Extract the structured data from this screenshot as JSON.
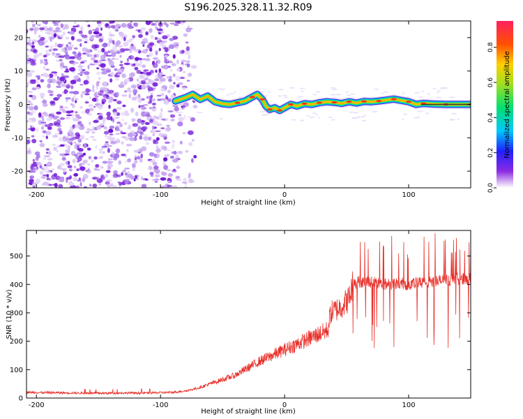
{
  "title": "S196.2025.328.11.32.R09",
  "colors": {
    "snr_line": "#e8302a",
    "axis": "#000000",
    "ridge_outer": "#3a1fd6"
  },
  "chart_data": [
    {
      "type": "heatmap",
      "name": "spectrogram",
      "xlabel": "Height of straight line (km)",
      "ylabel": "Frequency (Hz)",
      "xlim": [
        -208,
        150
      ],
      "ylim": [
        -25,
        25
      ],
      "xticks": [
        -200,
        -100,
        0,
        100
      ],
      "yticks": [
        -20,
        -10,
        0,
        10,
        20
      ],
      "noise_region_x": [
        -208,
        -70
      ],
      "ridge_x_start": -88,
      "ridge": [
        {
          "x": -88,
          "y": 1.0
        },
        {
          "x": -80,
          "y": 2.0
        },
        {
          "x": -74,
          "y": 3.0
        },
        {
          "x": -68,
          "y": 1.5
        },
        {
          "x": -62,
          "y": 2.5
        },
        {
          "x": -56,
          "y": 0.8
        },
        {
          "x": -50,
          "y": 0.2
        },
        {
          "x": -44,
          "y": 0.0
        },
        {
          "x": -38,
          "y": 0.5
        },
        {
          "x": -32,
          "y": 1.0
        },
        {
          "x": -26,
          "y": 2.2
        },
        {
          "x": -22,
          "y": 3.0
        },
        {
          "x": -18,
          "y": 1.5
        },
        {
          "x": -15,
          "y": -0.5
        },
        {
          "x": -12,
          "y": -1.5
        },
        {
          "x": -8,
          "y": -1.0
        },
        {
          "x": -4,
          "y": -1.8
        },
        {
          "x": 0,
          "y": -1.0
        },
        {
          "x": 5,
          "y": 0.0
        },
        {
          "x": 10,
          "y": -0.5
        },
        {
          "x": 16,
          "y": 0.2
        },
        {
          "x": 22,
          "y": 0.0
        },
        {
          "x": 28,
          "y": 0.5
        },
        {
          "x": 34,
          "y": 0.8
        },
        {
          "x": 40,
          "y": 0.6
        },
        {
          "x": 46,
          "y": 0.3
        },
        {
          "x": 52,
          "y": 0.8
        },
        {
          "x": 58,
          "y": 0.4
        },
        {
          "x": 64,
          "y": 0.9
        },
        {
          "x": 70,
          "y": 0.8
        },
        {
          "x": 76,
          "y": 1.0
        },
        {
          "x": 82,
          "y": 1.3
        },
        {
          "x": 88,
          "y": 1.6
        },
        {
          "x": 94,
          "y": 1.2
        },
        {
          "x": 100,
          "y": 0.8
        },
        {
          "x": 106,
          "y": 0.0
        },
        {
          "x": 112,
          "y": 0.3
        },
        {
          "x": 120,
          "y": 0.1
        },
        {
          "x": 130,
          "y": 0.0
        },
        {
          "x": 140,
          "y": 0.0
        },
        {
          "x": 150,
          "y": 0.0
        }
      ],
      "colorbar": {
        "label": "Normalized spectral amplitude",
        "range": [
          0.0,
          0.95
        ],
        "ticks": [
          "0.0",
          "0.2",
          "0.4",
          "0.6",
          "0.8"
        ],
        "tick_values": [
          0.0,
          0.2,
          0.4,
          0.6,
          0.8
        ]
      }
    },
    {
      "type": "line",
      "name": "snr",
      "xlabel": "Height of straight line (km)",
      "ylabel": "SNR (10 * v/v)",
      "xlim": [
        -208,
        150
      ],
      "ylim": [
        0,
        590
      ],
      "xticks": [
        -200,
        -100,
        0,
        100
      ],
      "yticks": [
        0,
        100,
        200,
        300,
        400,
        500
      ],
      "series": [
        {
          "name": "SNR",
          "x": [
            -208,
            -190,
            -170,
            -150,
            -130,
            -110,
            -90,
            -80,
            -70,
            -60,
            -50,
            -40,
            -30,
            -20,
            -10,
            0,
            10,
            20,
            30,
            35,
            37,
            45,
            52,
            55,
            60,
            70,
            80,
            90,
            100,
            110,
            120,
            130,
            140,
            150
          ],
          "y": [
            20,
            19,
            18,
            17,
            18,
            18,
            20,
            25,
            35,
            50,
            65,
            80,
            105,
            130,
            150,
            170,
            190,
            210,
            230,
            240,
            300,
            320,
            350,
            400,
            410,
            410,
            400,
            405,
            400,
            405,
            410,
            415,
            420,
            420
          ]
        }
      ]
    }
  ]
}
